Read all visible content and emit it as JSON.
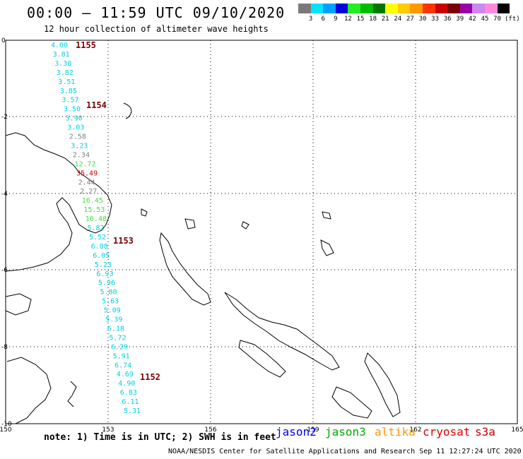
{
  "header": {
    "title": "00:00 – 11:59 UTC 09/10/2020",
    "subtitle": "12 hour collection of altimeter wave heights"
  },
  "legend": {
    "colors": [
      "#7a7a7a",
      "#00e5ff",
      "#00a0ff",
      "#0000dd",
      "#22ee22",
      "#00bb00",
      "#007700",
      "#ffff00",
      "#ffcc00",
      "#ff9900",
      "#ff3300",
      "#cc0000",
      "#7a0000",
      "#9900aa",
      "#cc88ee",
      "#ff88dd",
      "#000000"
    ],
    "labels": [
      "3",
      "6",
      "9",
      "12",
      "15",
      "18",
      "21",
      "24",
      "27",
      "30",
      "33",
      "36",
      "39",
      "42",
      "45",
      "70"
    ],
    "unit": "(ft)"
  },
  "axes": {
    "y_ticks": [
      "0",
      "-2",
      "-4",
      "-6",
      "-8",
      "-10"
    ],
    "x_ticks": [
      "150",
      "153",
      "156",
      "159",
      "162",
      "165"
    ]
  },
  "orbits": [
    "1155",
    "1154",
    "1153",
    "1152"
  ],
  "track": [
    {
      "v": "4.00",
      "c": "#00d0e0"
    },
    {
      "v": "3.81",
      "c": "#00d0e0"
    },
    {
      "v": "3.30",
      "c": "#00d0e0"
    },
    {
      "v": "3.82",
      "c": "#00d0e0"
    },
    {
      "v": "3.51",
      "c": "#00d0e0"
    },
    {
      "v": "3.85",
      "c": "#00d0e0"
    },
    {
      "v": "3.57",
      "c": "#00d0e0"
    },
    {
      "v": "3.50",
      "c": "#00d0e0"
    },
    {
      "v": "3.90",
      "c": "#00d0e0"
    },
    {
      "v": "3.03",
      "c": "#00d0e0"
    },
    {
      "v": "2.58",
      "c": "#808080"
    },
    {
      "v": "3.23",
      "c": "#00d0e0"
    },
    {
      "v": "2.34",
      "c": "#808080"
    },
    {
      "v": "12.72",
      "c": "#44dd44"
    },
    {
      "v": "35.49",
      "c": "#cc0000"
    },
    {
      "v": "2.44",
      "c": "#808080"
    },
    {
      "v": "2.27",
      "c": "#808080"
    },
    {
      "v": "16.45",
      "c": "#44dd44"
    },
    {
      "v": "15.53",
      "c": "#44dd44"
    },
    {
      "v": "16.48",
      "c": "#44dd44"
    },
    {
      "v": "5.82",
      "c": "#00d0e0"
    },
    {
      "v": "5.52",
      "c": "#00d0e0"
    },
    {
      "v": "6.08",
      "c": "#00d0e0"
    },
    {
      "v": "6.05",
      "c": "#00d0e0"
    },
    {
      "v": "5.23",
      "c": "#00d0e0"
    },
    {
      "v": "6.93",
      "c": "#00d0e0"
    },
    {
      "v": "5.96",
      "c": "#00d0e0"
    },
    {
      "v": "5.80",
      "c": "#00d0e0"
    },
    {
      "v": "5.63",
      "c": "#00d0e0"
    },
    {
      "v": "5.09",
      "c": "#00d0e0"
    },
    {
      "v": "5.39",
      "c": "#00d0e0"
    },
    {
      "v": "6.18",
      "c": "#00d0e0"
    },
    {
      "v": "5.72",
      "c": "#00d0e0"
    },
    {
      "v": "6.29",
      "c": "#00d0e0"
    },
    {
      "v": "5.91",
      "c": "#00d0e0"
    },
    {
      "v": "6.74",
      "c": "#00d0e0"
    },
    {
      "v": "4.69",
      "c": "#00d0e0"
    },
    {
      "v": "4.90",
      "c": "#00d0e0"
    },
    {
      "v": "6.83",
      "c": "#00d0e0"
    },
    {
      "v": "6.11",
      "c": "#00d0e0"
    },
    {
      "v": "5.31",
      "c": "#00d0e0"
    }
  ],
  "footer": {
    "note": "note: 1) Time is in UTC; 2) SWH is in feet",
    "satellites": [
      {
        "name": "jason2",
        "color": "#0000ee"
      },
      {
        "name": "jason3",
        "color": "#00aa00"
      },
      {
        "name": "altika",
        "color": "#ff9900"
      },
      {
        "name": "cryosat",
        "color": "#dd0000"
      },
      {
        "name": "s3a",
        "color": "#cc0000"
      }
    ],
    "credit": "NOAA/NESDIS Center for Satellite Applications and Research    Sep 11 12:27:24 UTC 2020"
  }
}
